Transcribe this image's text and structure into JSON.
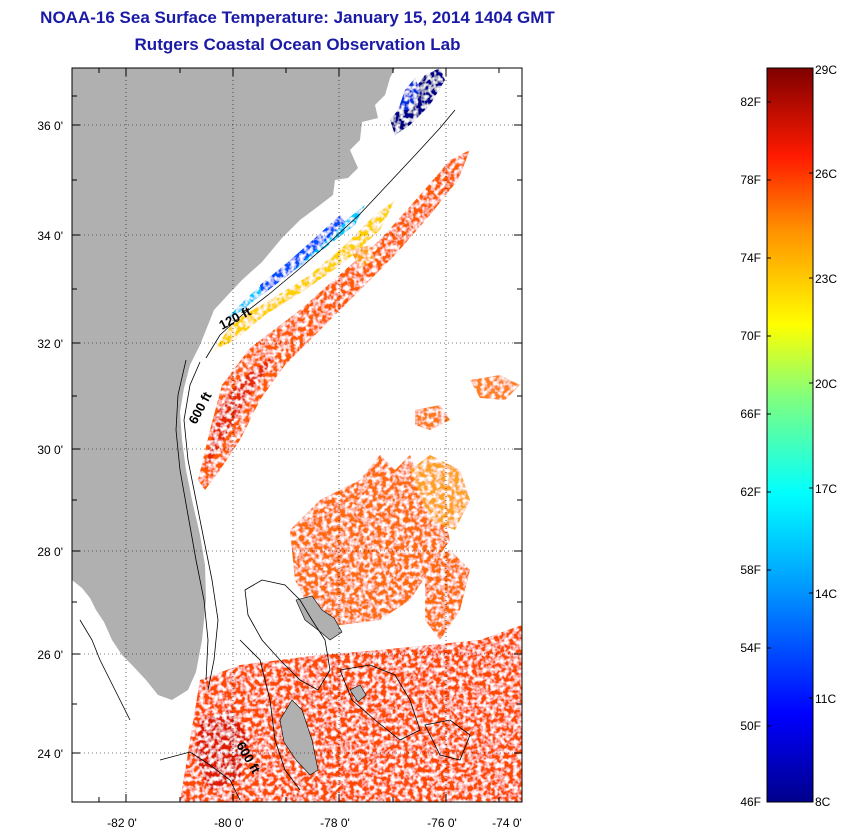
{
  "header": {
    "title": "NOAA-16 Sea Surface Temperature:  January 15, 2014 1404 GMT",
    "subtitle": "Rutgers Coastal Ocean Observation Lab"
  },
  "map": {
    "lon_ticks": [
      "-82 0'",
      "-80 0'",
      "-78 0'",
      "-76 0'",
      "-74 0'"
    ],
    "lat_ticks": [
      "36 0'",
      "34 0'",
      "32 0'",
      "30 0'",
      "28 0'",
      "26 0'",
      "24 0'"
    ],
    "depth_labels": {
      "a": "120 ft",
      "b": "600 ft",
      "c": "600 ft"
    }
  },
  "colorbar": {
    "celsius_labels": [
      "29C",
      "26C",
      "23C",
      "20C",
      "17C",
      "14C",
      "11C",
      "8C"
    ],
    "fahrenheit_labels": [
      "82F",
      "78F",
      "74F",
      "70F",
      "66F",
      "62F",
      "58F",
      "54F",
      "50F",
      "46F"
    ]
  },
  "colors": {
    "land": "#b0b0b0",
    "title": "#1a1aa6",
    "cold": "#00008b",
    "warm": "#ff6a00",
    "hot": "#7f0000"
  }
}
